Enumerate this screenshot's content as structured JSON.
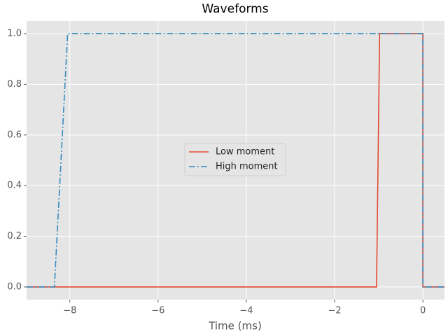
{
  "chart_data": {
    "type": "line",
    "title": "Waveforms",
    "x_label": "Time (ms)",
    "series": [
      {
        "name": "Low moment",
        "color": "#E24A33",
        "dash": "solid",
        "x": [
          -8.98,
          -1.05,
          -0.98,
          0,
          0,
          0.49
        ],
        "values": [
          0,
          0,
          1,
          1,
          0,
          0
        ]
      },
      {
        "name": "High moment",
        "color": "#348ABD",
        "dash": "dashdot",
        "x": [
          -8.98,
          -8.35,
          -8.05,
          0,
          0,
          0.49
        ],
        "values": [
          0,
          0,
          1,
          1,
          0,
          0
        ]
      }
    ],
    "xlim": [
      -8.98,
      0.49
    ],
    "ylim": [
      -0.05,
      1.05
    ],
    "xticks": [
      {
        "value": -8,
        "label": "−8"
      },
      {
        "value": -6,
        "label": "−6"
      },
      {
        "value": -4,
        "label": "−4"
      },
      {
        "value": -2,
        "label": "−2"
      },
      0
    ],
    "yticks": [
      {
        "value": 0,
        "label": "0.0"
      },
      0.2,
      0.4,
      0.6,
      0.8,
      {
        "value": 1,
        "label": "1.0"
      }
    ],
    "grid": true,
    "legend": "center"
  }
}
